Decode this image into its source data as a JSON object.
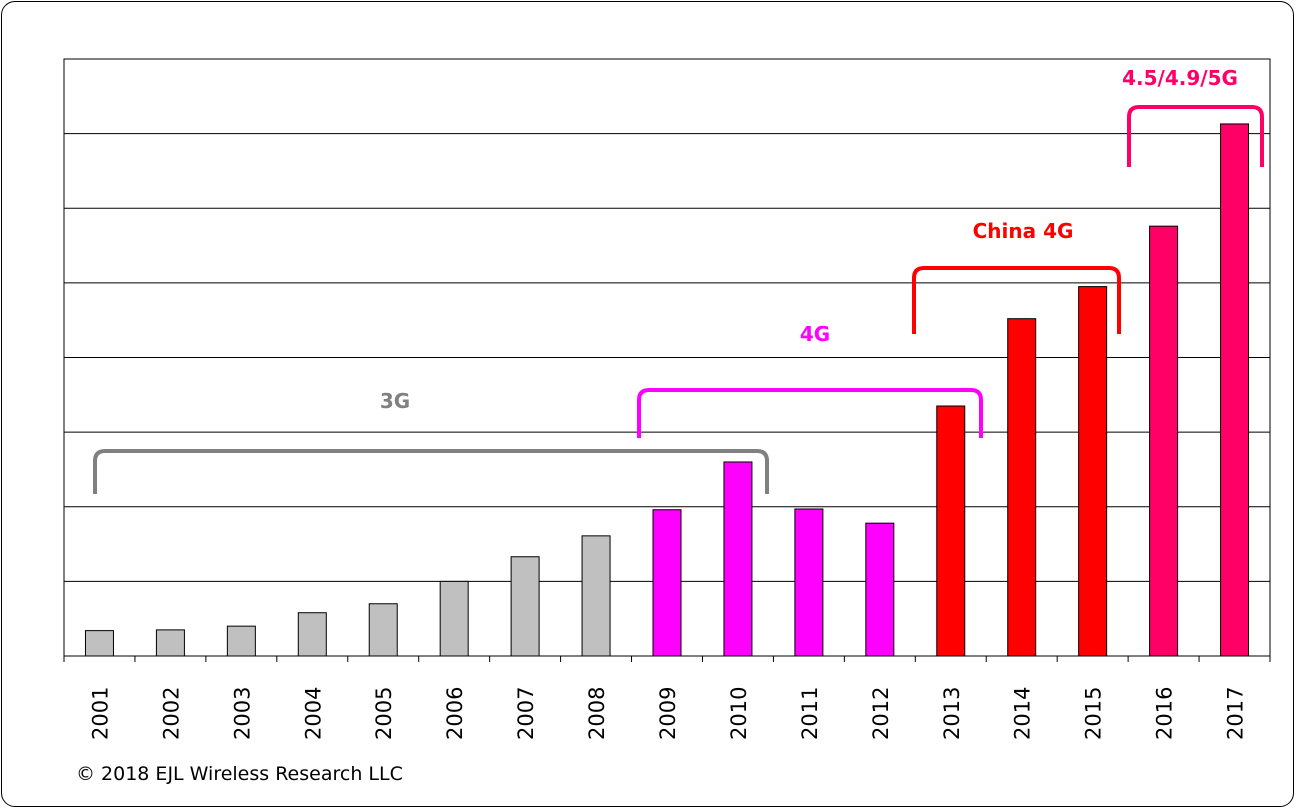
{
  "chart_data": {
    "type": "bar",
    "title": "",
    "xlabel": "",
    "ylabel": "",
    "ylim": [
      0,
      8
    ],
    "grid": true,
    "y_tick_labels_shown": false,
    "categories": [
      "2001",
      "2002",
      "2003",
      "2004",
      "2005",
      "2006",
      "2007",
      "2008",
      "2009",
      "2010",
      "2011",
      "2012",
      "2013",
      "2014",
      "2015",
      "2016",
      "2017"
    ],
    "values": [
      0.34,
      0.35,
      0.4,
      0.58,
      0.7,
      1.0,
      1.33,
      1.61,
      1.96,
      2.6,
      1.97,
      1.78,
      3.35,
      4.52,
      4.95,
      5.76,
      7.13
    ],
    "bar_colors": [
      "#C0C0C0",
      "#C0C0C0",
      "#C0C0C0",
      "#C0C0C0",
      "#C0C0C0",
      "#C0C0C0",
      "#C0C0C0",
      "#C0C0C0",
      "#FF00FF",
      "#FF00FF",
      "#FF00FF",
      "#FF00FF",
      "#FF0000",
      "#FF0000",
      "#FF0000",
      "#FF0066",
      "#FF0066"
    ],
    "annotations": [
      {
        "label": "3G",
        "from": "2001",
        "to": "2010",
        "color": "#808080"
      },
      {
        "label": "4G",
        "from": "2009",
        "to": "2013",
        "color": "#FF00FF"
      },
      {
        "label": "China 4G",
        "from": "2013",
        "to": "2015",
        "color": "#FF0000"
      },
      {
        "label": "4.5/4.9/5G",
        "from": "2016",
        "to": "2017",
        "color": "#FF0066"
      }
    ]
  },
  "footer": {
    "copyright": "© 2018  EJL Wireless Research LLC"
  }
}
